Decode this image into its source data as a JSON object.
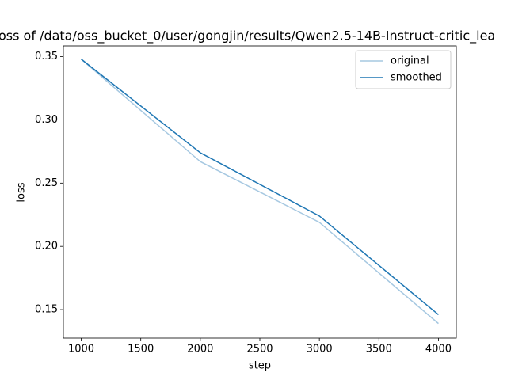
{
  "chart_data": {
    "type": "line",
    "title": "oss of /data/oss_bucket_0/user/gongjin/results/Qwen2.5-14B-Instruct-critic_lea",
    "x_label": "step",
    "y_label": "loss",
    "x": [
      1000,
      2000,
      3000,
      4000
    ],
    "series": [
      {
        "name": "original",
        "color": "#a6c8e1",
        "values": [
          0.348,
          0.267,
          0.219,
          0.139
        ]
      },
      {
        "name": "smoothed",
        "color": "#1f77b4",
        "values": [
          0.348,
          0.274,
          0.224,
          0.146
        ]
      }
    ],
    "xlim": [
      850,
      4150
    ],
    "xticks": [
      1000,
      1500,
      2000,
      2500,
      3000,
      3500,
      4000
    ],
    "ylim": [
      0.1275,
      0.3585
    ],
    "yticks": [
      {
        "value": 0.15,
        "label": "0.15"
      },
      {
        "value": 0.2,
        "label": "0.20"
      },
      {
        "value": 0.25,
        "label": "0.25"
      },
      {
        "value": 0.3,
        "label": "0.30"
      },
      {
        "value": 0.35,
        "label": "0.35"
      }
    ],
    "grid": false,
    "legend": "upper right"
  }
}
